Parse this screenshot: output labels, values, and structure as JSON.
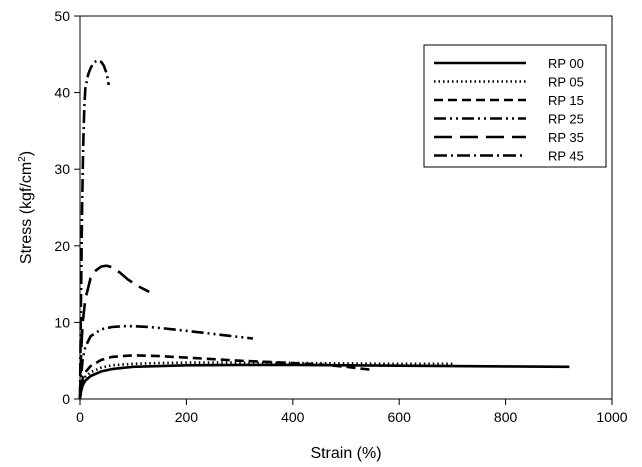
{
  "chart_data": {
    "type": "line",
    "title": "",
    "xlabel": "Strain (%)",
    "ylabel_main": "Stress (kgf/cm",
    "ylabel_sup": "2",
    "ylabel_close": ")",
    "xlim": [
      0,
      1000
    ],
    "ylim": [
      0,
      50
    ],
    "xticks": [
      0,
      200,
      400,
      600,
      800,
      1000
    ],
    "yticks": [
      0,
      10,
      20,
      30,
      40,
      50
    ],
    "grid": false,
    "legend_position": "top-right",
    "series": [
      {
        "name": "RP 00",
        "dash": "solid",
        "x": [
          0,
          2,
          5,
          10,
          20,
          40,
          60,
          100,
          150,
          200,
          300,
          400,
          500,
          600,
          700,
          800,
          920
        ],
        "y": [
          0,
          1.0,
          1.8,
          2.4,
          3.0,
          3.6,
          3.9,
          4.2,
          4.3,
          4.4,
          4.45,
          4.45,
          4.4,
          4.35,
          4.3,
          4.25,
          4.2
        ]
      },
      {
        "name": "RP 05",
        "dash": "dot",
        "x": [
          0,
          2,
          5,
          10,
          20,
          40,
          60,
          100,
          150,
          200,
          300,
          400,
          500,
          600,
          700
        ],
        "y": [
          0,
          1.2,
          2.2,
          2.9,
          3.5,
          4.1,
          4.4,
          4.6,
          4.7,
          4.75,
          4.75,
          4.7,
          4.65,
          4.6,
          4.6
        ]
      },
      {
        "name": "RP 15",
        "dash": "dash",
        "x": [
          0,
          2,
          5,
          10,
          20,
          40,
          60,
          100,
          150,
          200,
          300,
          400,
          450,
          500,
          550
        ],
        "y": [
          0,
          1.5,
          2.7,
          3.5,
          4.3,
          5.1,
          5.5,
          5.7,
          5.6,
          5.4,
          5.0,
          4.7,
          4.5,
          4.2,
          3.8
        ]
      },
      {
        "name": "RP 25",
        "dash": "dashdotdot",
        "x": [
          0,
          2,
          5,
          10,
          20,
          40,
          60,
          80,
          100,
          130,
          160,
          200,
          250,
          300,
          325
        ],
        "y": [
          0,
          3.0,
          5.2,
          6.8,
          8.2,
          9.1,
          9.4,
          9.5,
          9.5,
          9.4,
          9.2,
          8.9,
          8.5,
          8.1,
          7.9
        ]
      },
      {
        "name": "RP 35",
        "dash": "longdash",
        "x": [
          0,
          2,
          5,
          10,
          20,
          30,
          40,
          50,
          60,
          75,
          90,
          110,
          130
        ],
        "y": [
          0,
          6.0,
          10.0,
          13.0,
          15.8,
          16.8,
          17.3,
          17.4,
          17.2,
          16.5,
          15.6,
          14.7,
          14.0
        ]
      },
      {
        "name": "RP 45",
        "dash": "dashdot",
        "x": [
          0,
          1,
          2,
          4,
          6,
          8,
          10,
          15,
          20,
          25,
          30,
          35,
          40,
          45,
          50,
          52,
          54
        ],
        "y": [
          0,
          7.0,
          14.0,
          25.0,
          33.0,
          38.0,
          40.5,
          42.3,
          43.2,
          43.8,
          44.1,
          44.2,
          44.0,
          43.5,
          42.5,
          41.8,
          41.0
        ]
      }
    ]
  }
}
